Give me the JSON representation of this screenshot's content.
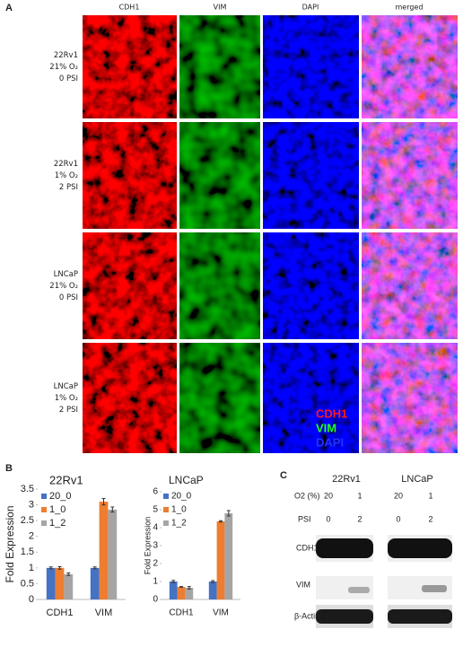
{
  "panel_a": {
    "label": "A",
    "columns": [
      "CDH1",
      "VIM",
      "DAPI",
      "merged"
    ],
    "rows": [
      {
        "lines": [
          "22Rv1",
          "21% O₂",
          "0 PSI"
        ]
      },
      {
        "lines": [
          "22Rv1",
          "1% O₂",
          "2 PSI"
        ]
      },
      {
        "lines": [
          "LNCaP",
          "21% O₂",
          "0 PSI"
        ]
      },
      {
        "lines": [
          "LNCaP",
          "1% O₂",
          "2 PSI"
        ]
      }
    ],
    "stain_legend": [
      "CDH1",
      "VIM",
      "DAPI"
    ]
  },
  "panel_b": {
    "label": "B"
  },
  "chart_data": [
    {
      "type": "bar",
      "title": "22Rv1",
      "y_label": "Fold Expression",
      "categories": [
        "CDH1",
        "VIM"
      ],
      "series": [
        {
          "name": "20_0",
          "color": "#4472c4",
          "values": [
            1.0,
            1.0
          ],
          "errors": [
            0.03,
            0.03
          ]
        },
        {
          "name": "1_0",
          "color": "#ed7d31",
          "values": [
            1.0,
            3.1
          ],
          "errors": [
            0.04,
            0.1
          ]
        },
        {
          "name": "1_2",
          "color": "#a5a5a5",
          "values": [
            0.8,
            2.85
          ],
          "errors": [
            0.04,
            0.08
          ]
        }
      ],
      "ylim": [
        0,
        3.5
      ],
      "yticks": [
        0,
        0.5,
        1,
        1.5,
        2,
        2.5,
        3,
        3.5
      ],
      "legend": "top-left"
    },
    {
      "type": "bar",
      "title": "LNCaP",
      "y_label": "Fold Expression",
      "categories": [
        "CDH1",
        "VIM"
      ],
      "series": [
        {
          "name": "20_0",
          "color": "#4472c4",
          "values": [
            1.0,
            1.0
          ],
          "errors": [
            0.06,
            0.05
          ]
        },
        {
          "name": "1_0",
          "color": "#ed7d31",
          "values": [
            0.7,
            4.35
          ],
          "errors": [
            0.02,
            0.04
          ]
        },
        {
          "name": "1_2",
          "color": "#a5a5a5",
          "values": [
            0.65,
            4.8
          ],
          "errors": [
            0.07,
            0.15
          ]
        }
      ],
      "ylim": [
        0,
        6
      ],
      "yticks": [
        0,
        1,
        2,
        3,
        4,
        5,
        6
      ],
      "legend": "top-left"
    }
  ],
  "panel_c": {
    "label": "C",
    "cell_lines": [
      "22Rv1",
      "LNCaP"
    ],
    "o2_label": "O2 (%)",
    "o2_values": [
      "20",
      "1",
      "20",
      "1"
    ],
    "psi_label": "PSI",
    "psi_values": [
      "0",
      "2",
      "0",
      "2"
    ],
    "blots": [
      "CDH1",
      "VIM",
      "β-Actin"
    ]
  }
}
